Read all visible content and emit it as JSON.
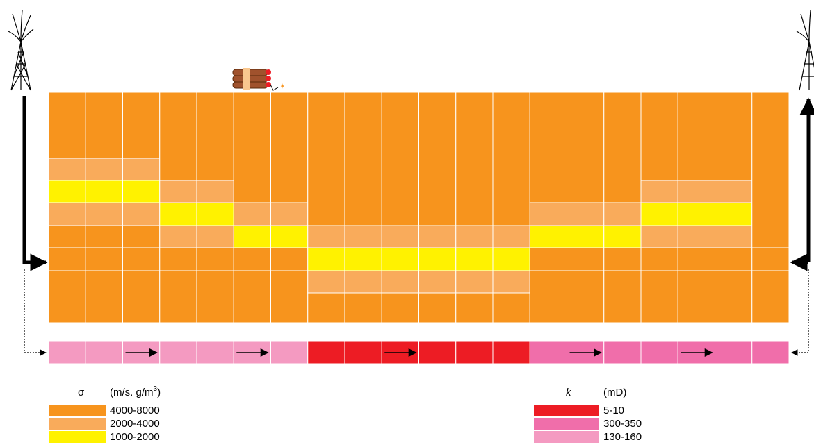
{
  "legend_sigma": {
    "symbol": "σ",
    "unit_prefix": "(m/s. g/m",
    "unit_sup": "3",
    "unit_suffix": ")",
    "items": [
      "4000-8000",
      "2000-4000",
      "1000-2000"
    ]
  },
  "legend_k": {
    "symbol": "k",
    "unit": "(mD)",
    "items": [
      "5-10",
      "300-350",
      "130-160"
    ]
  }
}
